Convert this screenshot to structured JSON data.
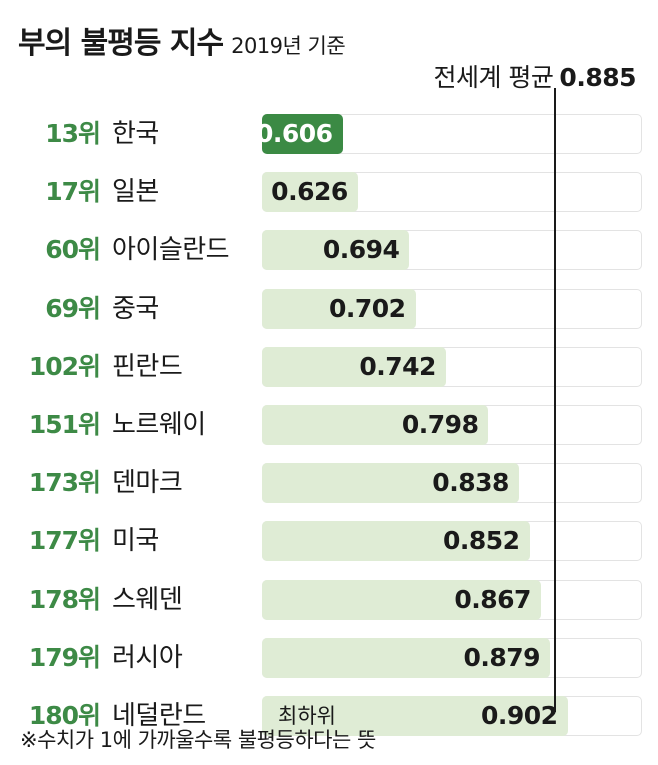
{
  "title": {
    "main": "부의 불평등 지수",
    "sub": "2019년 기준"
  },
  "average": {
    "label": "전세계 평균",
    "value": "0.885"
  },
  "footnote": "※수치가 1에 가까울수록 불평등하다는 뜻",
  "chart_data": {
    "type": "bar",
    "orientation": "horizontal",
    "xlim": [
      0.5,
      1.0
    ],
    "reference_line": 0.885,
    "rows": [
      {
        "rank": "13위",
        "country": "한국",
        "value": 0.606,
        "label": "0.606",
        "highlight": true
      },
      {
        "rank": "17위",
        "country": "일본",
        "value": 0.626,
        "label": "0.626"
      },
      {
        "rank": "60위",
        "country": "아이슬란드",
        "value": 0.694,
        "label": "0.694"
      },
      {
        "rank": "69위",
        "country": "중국",
        "value": 0.702,
        "label": "0.702"
      },
      {
        "rank": "102위",
        "country": "핀란드",
        "value": 0.742,
        "label": "0.742"
      },
      {
        "rank": "151위",
        "country": "노르웨이",
        "value": 0.798,
        "label": "0.798"
      },
      {
        "rank": "173위",
        "country": "덴마크",
        "value": 0.838,
        "label": "0.838"
      },
      {
        "rank": "177위",
        "country": "미국",
        "value": 0.852,
        "label": "0.852"
      },
      {
        "rank": "178위",
        "country": "스웨덴",
        "value": 0.867,
        "label": "0.867"
      },
      {
        "rank": "179위",
        "country": "러시아",
        "value": 0.879,
        "label": "0.879"
      },
      {
        "rank": "180위",
        "country": "네덜란드",
        "value": 0.902,
        "label": "0.902",
        "note": "최하위"
      }
    ]
  }
}
